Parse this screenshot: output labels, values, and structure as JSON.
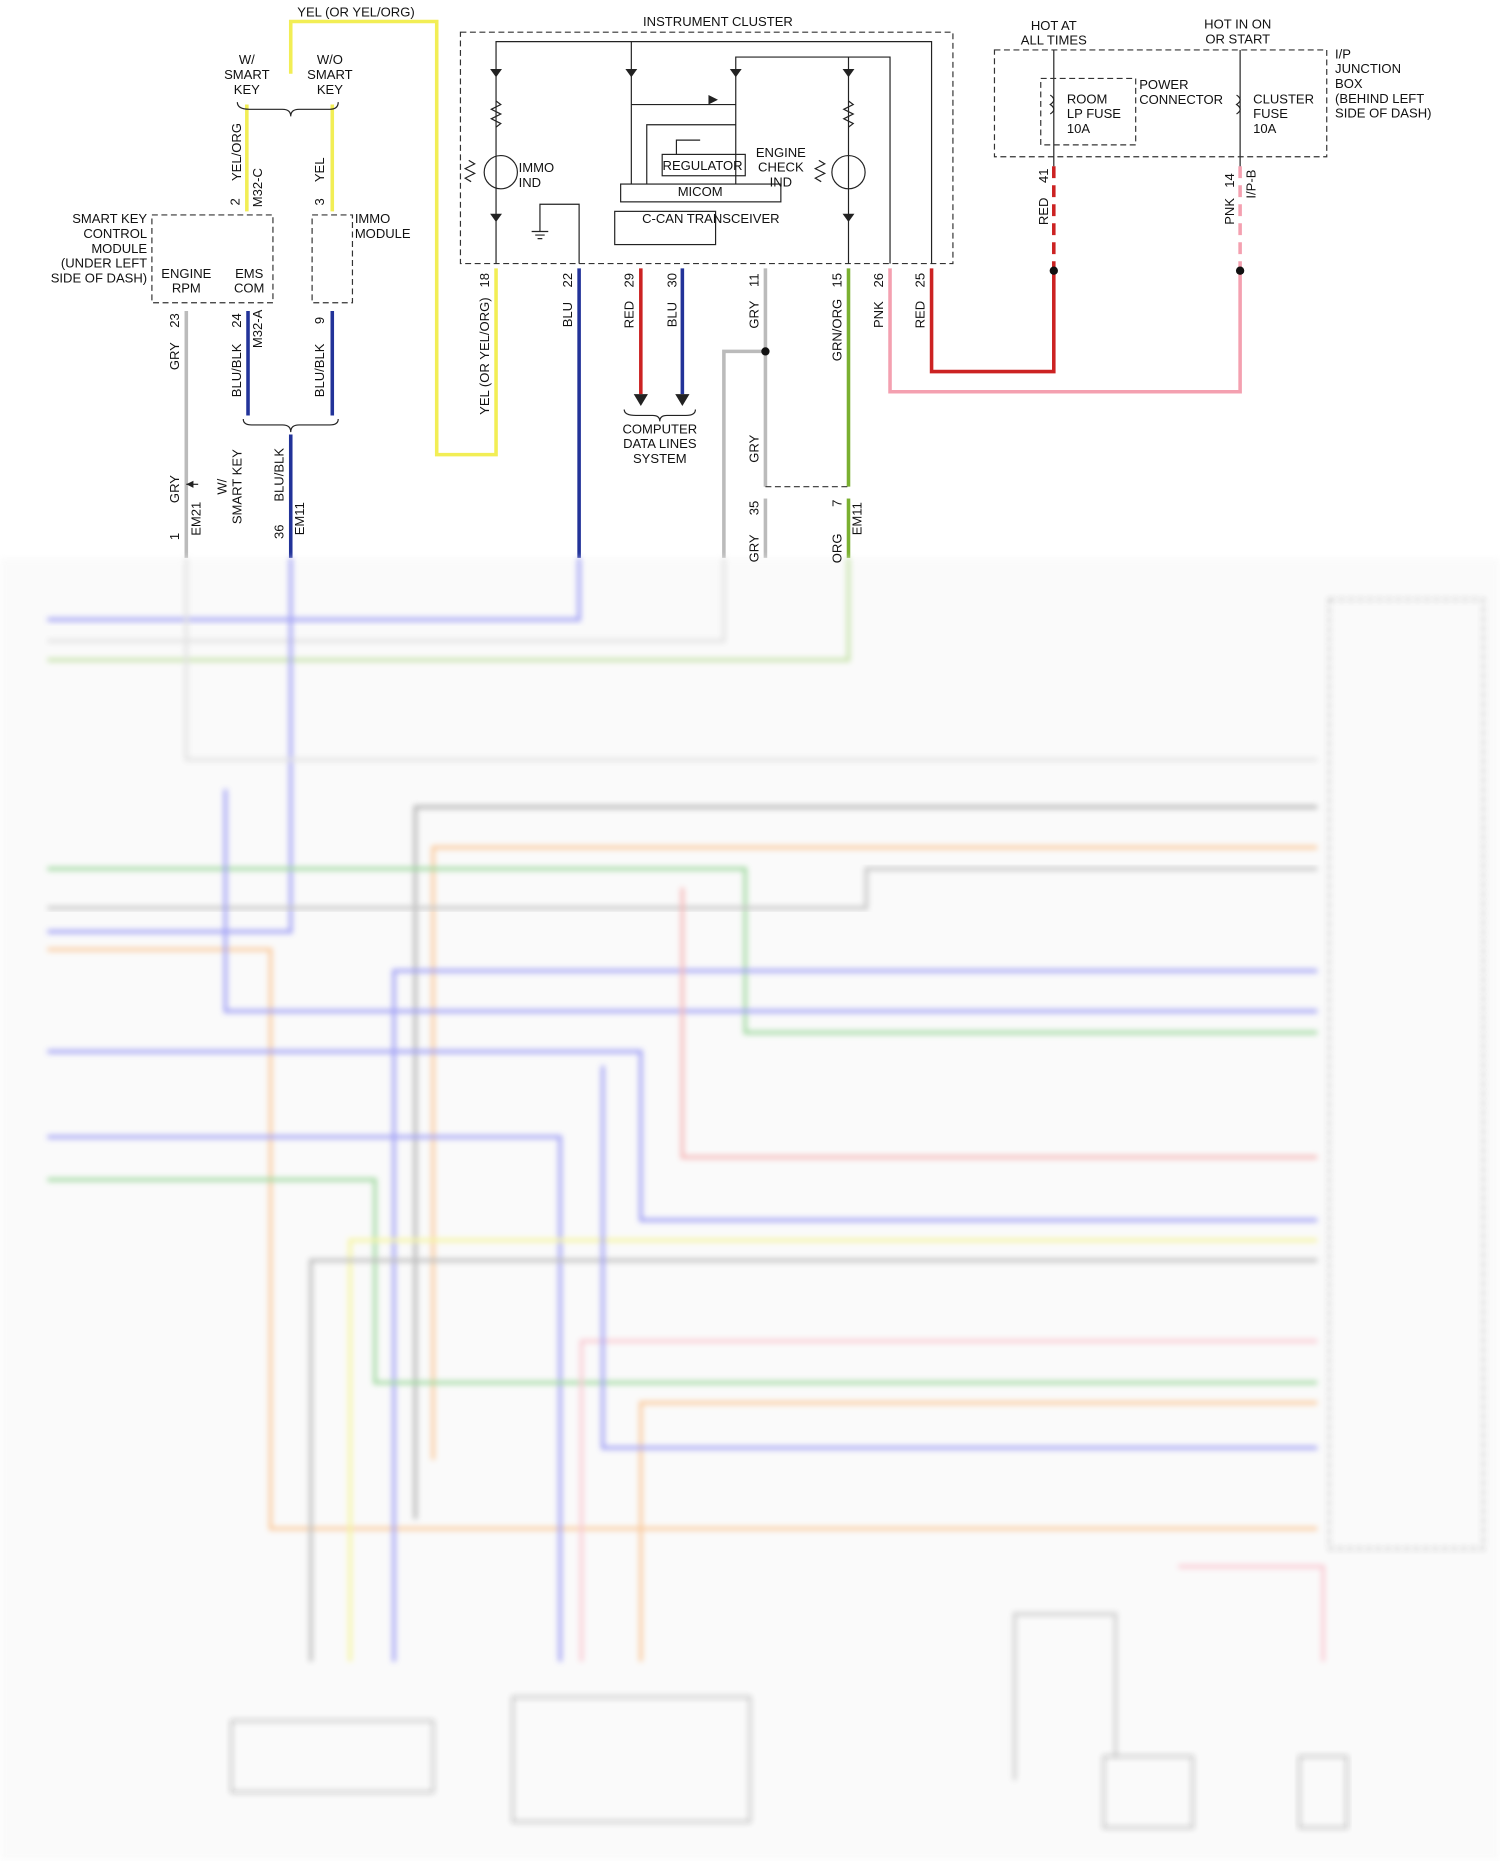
{
  "top_wire_label": "YEL (OR YEL/ORG)",
  "instrument_cluster": {
    "title": "INSTRUMENT CLUSTER",
    "immo_ind": [
      "IMMO",
      "IND"
    ],
    "regulator": "REGULATOR",
    "engine_check_ind": [
      "ENGINE",
      "CHECK",
      "IND"
    ],
    "micom": "MICOM",
    "c_can": "C-CAN TRANSCEIVER",
    "pins": [
      {
        "pin": "18",
        "wire": "YEL (OR YEL/ORG)"
      },
      {
        "pin": "22",
        "wire": "BLU"
      },
      {
        "pin": "29",
        "wire": "RED"
      },
      {
        "pin": "30",
        "wire": "BLU"
      },
      {
        "pin": "11",
        "wire": "GRY"
      },
      {
        "pin": "15",
        "wire": "GRN/ORG"
      },
      {
        "pin": "26",
        "wire": "PNK"
      },
      {
        "pin": "25",
        "wire": "RED"
      }
    ]
  },
  "power": {
    "hot_at_all_times": [
      "HOT AT",
      "ALL TIMES"
    ],
    "hot_in_on": [
      "HOT IN ON",
      "OR START"
    ],
    "junction_box": [
      "I/P",
      "JUNCTION",
      "BOX",
      "(BEHIND LEFT",
      "SIDE OF DASH)"
    ],
    "power_connector": [
      "POWER",
      "CONNECTOR"
    ],
    "room_fuse": [
      "ROOM",
      "LP FUSE",
      "10A"
    ],
    "cluster_fuse": [
      "CLUSTER",
      "FUSE",
      "10A"
    ],
    "pin41": "41",
    "wire41": "RED",
    "pin14": "14",
    "wire14": "PNK",
    "connector14": "I/P-B"
  },
  "smart_key": {
    "w_smart_key": [
      "W/",
      "SMART",
      "KEY"
    ],
    "wo_smart_key": [
      "W/O",
      "SMART",
      "KEY"
    ],
    "module": [
      "SMART KEY",
      "CONTROL",
      "MODULE",
      "(UNDER LEFT",
      "SIDE OF DASH)"
    ],
    "engine_rpm": [
      "ENGINE",
      "RPM"
    ],
    "ems_com": [
      "EMS",
      "COM"
    ],
    "pin2": "2",
    "wire2": "YEL/ORG",
    "connector2": "M32-C",
    "pin23": "23",
    "wire23": "GRY",
    "pin24": "24",
    "wire24": "BLU/BLK",
    "connector24": "M32-A"
  },
  "immo_module": {
    "label": [
      "IMMO",
      "MODULE"
    ],
    "pin3": "3",
    "wire3": "YEL",
    "pin9": "9",
    "wire9": "BLU/BLK"
  },
  "computer_data_lines": [
    "COMPUTER",
    "DATA LINES",
    "SYSTEM"
  ],
  "lower": {
    "wire_gry": "GRY",
    "w_smart_key": [
      "W/",
      "SMART KEY"
    ],
    "wire_blu_blk": "BLU/BLK",
    "pin1": "1",
    "connector1": "EM21",
    "pin36": "36",
    "connector36": "EM11",
    "wire_gry_mid": "GRY",
    "pin35": "35",
    "pin7": "7",
    "connector7": "EM11",
    "wire_gry_bottom": "GRY",
    "wire_org_bottom": "ORG"
  }
}
